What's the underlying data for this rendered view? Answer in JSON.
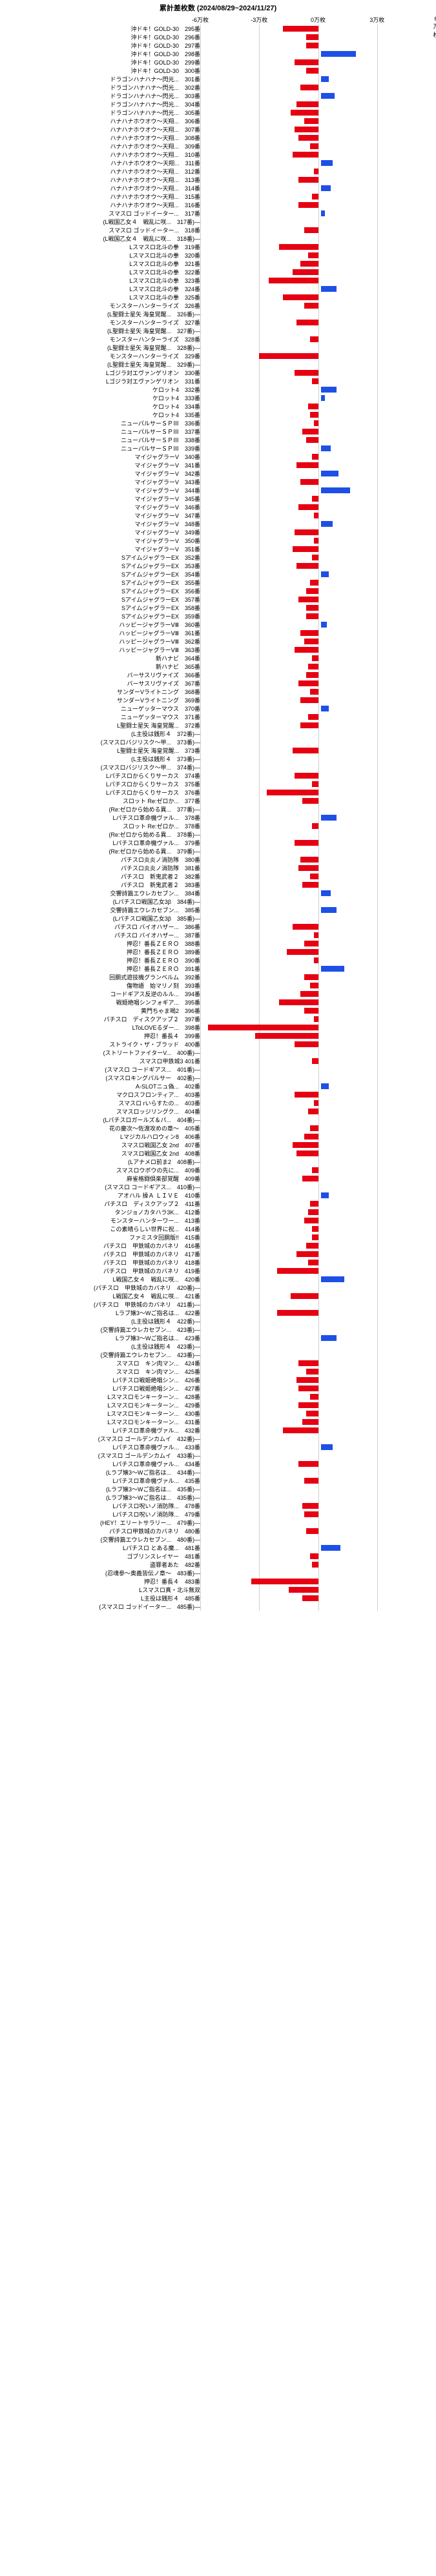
{
  "title": "累計差枚数 (2024/08/29~2024/11/27)",
  "xmin": -60000,
  "xmax": 60000,
  "xticks": [
    -60000,
    -30000,
    0,
    30000,
    60000
  ],
  "xticklabels": [
    "-6万枚",
    "-3万枚",
    "0万枚",
    "3万枚",
    "6万枚"
  ],
  "colors": {
    "neg": "#e60012",
    "pos": "#1e50e6",
    "grid": "#d0d0d0",
    "text": "#000"
  },
  "label_width": 310,
  "rows": [
    {
      "l": "沖ドキ！GOLD-30　295番",
      "v": -18000
    },
    {
      "l": "沖ドキ！GOLD-30　296番",
      "v": -6000
    },
    {
      "l": "沖ドキ！GOLD-30　297番",
      "v": -6000
    },
    {
      "l": "沖ドキ！GOLD-30　298番",
      "v": 18000
    },
    {
      "l": "沖ドキ！GOLD-30　299番",
      "v": -12000
    },
    {
      "l": "沖ドキ！GOLD-30　300番",
      "v": -6000
    },
    {
      "l": "ドラゴンハナハナ～閃光...　301番",
      "v": 4000
    },
    {
      "l": "ドラゴンハナハナ～閃光...　302番",
      "v": -9000
    },
    {
      "l": "ドラゴンハナハナ～閃光...　303番",
      "v": 7000
    },
    {
      "l": "ドラゴンハナハナ～閃光...　304番",
      "v": -11000
    },
    {
      "l": "ドラゴンハナハナ～閃光...　305番",
      "v": -14000
    },
    {
      "l": "ハナハナホウオウ～天翔...　306番",
      "v": -7000
    },
    {
      "l": "ハナハナホウオウ～天翔...　307番",
      "v": -12000
    },
    {
      "l": "ハナハナホウオウ～天翔...　308番",
      "v": -10000
    },
    {
      "l": "ハナハナホウオウ～天翔...　309番",
      "v": -4000
    },
    {
      "l": "ハナハナホウオウ～天翔...　310番",
      "v": -13000
    },
    {
      "l": "ハナハナホウオウ～天翔...　311番",
      "v": 6000
    },
    {
      "l": "ハナハナホウオウ～天翔...　312番",
      "v": -2000
    },
    {
      "l": "ハナハナホウオウ～天翔...　313番",
      "v": -10000
    },
    {
      "l": "ハナハナホウオウ～天翔...　314番",
      "v": 5000
    },
    {
      "l": "ハナハナホウオウ～天翔...　315番",
      "v": -3000
    },
    {
      "l": "ハナハナホウオウ～天翔...　316番",
      "v": -10000
    },
    {
      "l": "スマスロ ゴッドイーター...　317番",
      "v": 2000
    },
    {
      "l": "(L戦国乙女４　戦乱に咲...　317番)―",
      "v": 0
    },
    {
      "l": "スマスロ ゴッドイーター...　318番",
      "v": -7000
    },
    {
      "l": "(L戦国乙女４　戦乱に咲...　318番)―",
      "v": 0
    },
    {
      "l": "Lスマスロ北斗の拳　319番",
      "v": -20000
    },
    {
      "l": "Lスマスロ北斗の拳　320番",
      "v": -5000
    },
    {
      "l": "Lスマスロ北斗の拳　321番",
      "v": -9000
    },
    {
      "l": "Lスマスロ北斗の拳　322番",
      "v": -13000
    },
    {
      "l": "Lスマスロ北斗の拳　323番",
      "v": -25000
    },
    {
      "l": "Lスマスロ北斗の拳　324番",
      "v": 8000
    },
    {
      "l": "Lスマスロ北斗の拳　325番",
      "v": -18000
    },
    {
      "l": "モンスターハンターライズ　326番",
      "v": -7000
    },
    {
      "l": "(L聖闘士星矢 海皇覚醒...　326番)―",
      "v": 0
    },
    {
      "l": "モンスターハンターライズ　327番",
      "v": -11000
    },
    {
      "l": "(L聖闘士星矢 海皇覚醒...　327番)―",
      "v": 0
    },
    {
      "l": "モンスターハンターライズ　328番",
      "v": -4000
    },
    {
      "l": "(L聖闘士星矢 海皇覚醒...　328番)―",
      "v": 0
    },
    {
      "l": "モンスターハンターライズ　329番",
      "v": -30000
    },
    {
      "l": "(L聖闘士星矢 海皇覚醒...　329番)―",
      "v": 0
    },
    {
      "l": "Lゴジラ対エヴァンゲリオン　330番",
      "v": -12000
    },
    {
      "l": "Lゴジラ対エヴァンゲリオン　331番",
      "v": -3000
    },
    {
      "l": "ケロット4　332番",
      "v": 8000
    },
    {
      "l": "ケロット4　333番",
      "v": 2000
    },
    {
      "l": "ケロット4　334番",
      "v": -5000
    },
    {
      "l": "ケロット4　335番",
      "v": -4000
    },
    {
      "l": "ニューパルサーＳＰⅢ　336番",
      "v": -2000
    },
    {
      "l": "ニューパルサーＳＰⅢ　337番",
      "v": -8000
    },
    {
      "l": "ニューパルサーＳＰⅢ　338番",
      "v": -6000
    },
    {
      "l": "ニューパルサーＳＰⅢ　339番",
      "v": 5000
    },
    {
      "l": "マイジャグラーV　340番",
      "v": -3000
    },
    {
      "l": "マイジャグラーV　341番",
      "v": -11000
    },
    {
      "l": "マイジャグラーV　342番",
      "v": 9000
    },
    {
      "l": "マイジャグラーV　343番",
      "v": -9000
    },
    {
      "l": "マイジャグラーV　344番",
      "v": 15000
    },
    {
      "l": "マイジャグラーV　345番",
      "v": -3000
    },
    {
      "l": "マイジャグラーV　346番",
      "v": -10000
    },
    {
      "l": "マイジャグラーV　347番",
      "v": -2000
    },
    {
      "l": "マイジャグラーV　348番",
      "v": 6000
    },
    {
      "l": "マイジャグラーV　349番",
      "v": -12000
    },
    {
      "l": "マイジャグラーV　350番",
      "v": -2000
    },
    {
      "l": "マイジャグラーV　351番",
      "v": -13000
    },
    {
      "l": "SアイムジャグラーEX　352番",
      "v": -3000
    },
    {
      "l": "SアイムジャグラーEX　353番",
      "v": -11000
    },
    {
      "l": "SアイムジャグラーEX　354番",
      "v": 4000
    },
    {
      "l": "SアイムジャグラーEX　355番",
      "v": -4000
    },
    {
      "l": "SアイムジャグラーEX　356番",
      "v": -6000
    },
    {
      "l": "SアイムジャグラーEX　357番",
      "v": -10000
    },
    {
      "l": "SアイムジャグラーEX　358番",
      "v": -6000
    },
    {
      "l": "SアイムジャグラーEX　359番",
      "v": -6000
    },
    {
      "l": "ハッピージャグラーⅤⅢ　360番",
      "v": 3000
    },
    {
      "l": "ハッピージャグラーⅤⅢ　361番",
      "v": -9000
    },
    {
      "l": "ハッピージャグラーⅤⅢ　362番",
      "v": -7000
    },
    {
      "l": "ハッピージャグラーⅤⅢ　363番",
      "v": -12000
    },
    {
      "l": "新ハナビ　364番",
      "v": -3000
    },
    {
      "l": "新ハナビ　365番",
      "v": -5000
    },
    {
      "l": "バーサスリヴァイズ　366番",
      "v": -6000
    },
    {
      "l": "バーサスリヴァイズ　367番",
      "v": -10000
    },
    {
      "l": "サンダーVライトニング　368番",
      "v": -4000
    },
    {
      "l": "サンダーVライトニング　369番",
      "v": -9000
    },
    {
      "l": "ニューゲッターマウス　370番",
      "v": 4000
    },
    {
      "l": "ニューゲッターマウス　371番",
      "v": -5000
    },
    {
      "l": "L聖闘士星矢 海皇覚醒...　372番",
      "v": -9000
    },
    {
      "l": "(L主役は銭形４　372番)―",
      "v": 0
    },
    {
      "l": "(スマスロバジリスク～甲...　373番)―",
      "v": 0
    },
    {
      "l": "L聖闘士星矢 海皇覚醒...　373番",
      "v": -13000
    },
    {
      "l": "(L主役は銭形４　373番)―",
      "v": 0
    },
    {
      "l": "(スマスロバジリスク～甲...　374番)―",
      "v": 0
    },
    {
      "l": "Lパチスロからくりサーカス　374番",
      "v": -12000
    },
    {
      "l": "Lパチスロからくりサーカス　375番",
      "v": -3000
    },
    {
      "l": "Lパチスロからくりサーカス　376番",
      "v": -26000
    },
    {
      "l": "スロット Re:ゼロか...　377番",
      "v": -8000
    },
    {
      "l": "(Re:ゼロから始める異...　377番)―",
      "v": 0
    },
    {
      "l": "Lパチスロ革命機ヴァル...　378番",
      "v": 8000
    },
    {
      "l": "スロット Re:ゼロか...　378番",
      "v": -3000
    },
    {
      "l": "(Re:ゼロから始める異...　378番)―",
      "v": 0
    },
    {
      "l": "Lパチスロ革命機ヴァル...　379番",
      "v": -12000
    },
    {
      "l": "(Re:ゼロから始める異...　379番)―",
      "v": 0
    },
    {
      "l": "パチスロ炎炎ノ消防隊　380番",
      "v": -9000
    },
    {
      "l": "パチスロ炎炎ノ消防隊　381番",
      "v": -10000
    },
    {
      "l": "パチスロ　新鬼武者２　382番",
      "v": -4000
    },
    {
      "l": "パチスロ　新鬼武者２　383番",
      "v": -8000
    },
    {
      "l": "交響詩篇エウレカセブン...　384番",
      "v": 5000
    },
    {
      "l": "(Lパチスロ戦国乙女3β　384番)―",
      "v": 0
    },
    {
      "l": "交響詩篇エウレカセブン...　385番",
      "v": 8000
    },
    {
      "l": "(Lパチスロ戦国乙女3β　385番)―",
      "v": 0
    },
    {
      "l": "パチスロ バイオハザー...　386番",
      "v": -13000
    },
    {
      "l": "パチスロ バイオハザー...　387番",
      "v": -2000
    },
    {
      "l": "押忍！番長ＺＥＲＯ　388番",
      "v": -7000
    },
    {
      "l": "押忍！番長ＺＥＲＯ　389番",
      "v": -16000
    },
    {
      "l": "押忍！番長ＺＥＲＯ　390番",
      "v": -2000
    },
    {
      "l": "押忍！番長ＺＥＲＯ　391番",
      "v": 12000
    },
    {
      "l": "回胴式遊技機グランベルム　392番",
      "v": -7000
    },
    {
      "l": "傷物語　始マリノ刻　393番",
      "v": -4000
    },
    {
      "l": "コードギアス反逆のルル...　394番",
      "v": -9000
    },
    {
      "l": "戦姫絶唱シンフォギア...　395番",
      "v": -20000
    },
    {
      "l": "黄門ちゃま喝2　396番",
      "v": -7000
    },
    {
      "l": "パチスロ　ディスクアップ２　397番",
      "v": -2000
    },
    {
      "l": "LToLOVEるダー...　398番",
      "v": -56000
    },
    {
      "l": "押忍！番長４　399番",
      "v": -32000
    },
    {
      "l": "ストライク・ザ・ブラッド　400番",
      "v": -12000
    },
    {
      "l": "(ストリートファイターV...　400番)―",
      "v": 0
    },
    {
      "l": "スマスロ甲鉄城3 401番",
      "v": -3000
    },
    {
      "l": "(スマスロ コードギアス...　401番)―",
      "v": 0
    },
    {
      "l": "(スマスロキングパルサー　402番)―",
      "v": 0
    },
    {
      "l": "A-SLOTニュ偽...　402番",
      "v": 4000
    },
    {
      "l": "マクロスフロンティア...　403番",
      "v": -12000
    },
    {
      "l": "スマスロ rいらすたの...　403番",
      "v": -2000
    },
    {
      "l": "スマスロッジリングク...　404番",
      "v": -5000
    },
    {
      "l": "(Lパチスロガールズ＆パ...　404番)―",
      "v": 0
    },
    {
      "l": "花の慶次～佐渡攻めの章～　405番",
      "v": -4000
    },
    {
      "l": "Lマジカルハロウィン8　406番",
      "v": -7000
    },
    {
      "l": "スマスロ戦国乙女 2nd　407番",
      "v": -13000
    },
    {
      "l": "スマスロ戦国乙女 2nd　408番",
      "v": -11000
    },
    {
      "l": "(Lアナメロ前ま2　408番)―",
      "v": 0
    },
    {
      "l": "スマスロウボウの先に...　409番",
      "v": -3000
    },
    {
      "l": "麻雀格闘倶楽部覚醒　409番",
      "v": -8000
    },
    {
      "l": "(スマスロ コードギアス...　410番)―",
      "v": 0
    },
    {
      "l": "アオハル 操Ａ ＬＩＶＥ　410番",
      "v": 4000
    },
    {
      "l": "パチスロ　ディスクアップ２　411番",
      "v": -4000
    },
    {
      "l": "タンジョノカタハラ3K...　412番",
      "v": -5000
    },
    {
      "l": "モンスターハンターワー...　413番",
      "v": -7000
    },
    {
      "l": "この素晴らしい世界に祝...　414番",
      "v": -3000
    },
    {
      "l": "ファミスタ回胴版!!　415番",
      "v": -3000
    },
    {
      "l": "パチスロ　甲鉄城のカバネリ　416番",
      "v": -6000
    },
    {
      "l": "パチスロ　甲鉄城のカバネリ　417番",
      "v": -11000
    },
    {
      "l": "パチスロ　甲鉄城のカバネリ　418番",
      "v": -5000
    },
    {
      "l": "パチスロ　甲鉄城のカバネリ　419番",
      "v": -21000
    },
    {
      "l": "L戦国乙女４　戦乱に咲...　420番",
      "v": 12000
    },
    {
      "l": "(パチスロ　甲鉄城のカバネリ　420番)―",
      "v": 0
    },
    {
      "l": "L戦国乙女４　戦乱に咲...　421番",
      "v": -14000
    },
    {
      "l": "(パチスロ　甲鉄城のカバネリ　421番)―",
      "v": 0
    },
    {
      "l": "Lラブ嬢3～Wご指名は...　422番",
      "v": -21000
    },
    {
      "l": "(L主役は銭形４　422番)―",
      "v": 0
    },
    {
      "l": "(交響詩篇エウレカセブン...　423番)―",
      "v": 0
    },
    {
      "l": "Lラブ嬢3～Wご指名は...　423番",
      "v": 8000
    },
    {
      "l": "(L主役は銭形４　423番)―",
      "v": 0
    },
    {
      "l": "(交響詩篇エウレカセブン...　423番)―",
      "v": 0
    },
    {
      "l": "スマスロ　キン肉マン...　424番",
      "v": -10000
    },
    {
      "l": "スマスロ　キン肉マン...　425番",
      "v": -6000
    },
    {
      "l": "Lパチスロ戦姫絶唱シン...　426番",
      "v": -11000
    },
    {
      "l": "Lパチスロ戦姫絶唱シン...　427番",
      "v": -10000
    },
    {
      "l": "Lスマスロモンキーターン...　428番",
      "v": -4000
    },
    {
      "l": "Lスマスロモンキーターン...　429番",
      "v": -10000
    },
    {
      "l": "Lスマスロモンキーターン...　430番",
      "v": -6000
    },
    {
      "l": "Lスマスロモンキーターン...　431番",
      "v": -8000
    },
    {
      "l": "Lパチスロ革命機ヴァル...　432番",
      "v": -18000
    },
    {
      "l": "(スマスロ ゴールデンカムイ　432番)―",
      "v": 0
    },
    {
      "l": "Lパチスロ革命機ヴァル...　433番",
      "v": 6000
    },
    {
      "l": "(スマスロ ゴールデンカムイ　433番)―",
      "v": 0
    },
    {
      "l": "Lパチスロ革命機ヴァル...　434番",
      "v": -10000
    },
    {
      "l": "(Lラブ嬢3～Wご指名は...　434番)―",
      "v": 0
    },
    {
      "l": "Lパチスロ革命機ヴァル...　435番",
      "v": -7000
    },
    {
      "l": "(Lラブ嬢3～Wご指名は...　435番)―",
      "v": 0
    },
    {
      "l": "(Lラブ嬢3～Wご指名は...　435番)―",
      "v": 0
    },
    {
      "l": "Lパチスロ呪いノ消防隊...　478番",
      "v": -8000
    },
    {
      "l": "Lパチスロ呪いノ消防隊...　479番",
      "v": -7000
    },
    {
      "l": "(HEY！エリートサラリー...　479番)―",
      "v": 0
    },
    {
      "l": "パチスロ甲鉄城のカバネリ　480番",
      "v": -6000
    },
    {
      "l": "(交響詩篇エウレカセブン...　480番)―",
      "v": 0
    },
    {
      "l": "Lパチスロ とある魔...　481番",
      "v": 10000
    },
    {
      "l": "ゴブリンスレイヤー　481番",
      "v": -4000
    },
    {
      "l": "盗罪者あた　482番",
      "v": -3000
    },
    {
      "l": "(忍魂参～奥義皆伝ノ章～　483番)―",
      "v": 0
    },
    {
      "l": "押忍！番長４　483番",
      "v": -34000
    },
    {
      "l": "Lスマスロ真・北斗無双",
      "v": -15000
    },
    {
      "l": "L主役は銭形４　485番",
      "v": -8000
    },
    {
      "l": "(スマスロ ゴッドイーター...　485番)―",
      "v": 0
    }
  ]
}
